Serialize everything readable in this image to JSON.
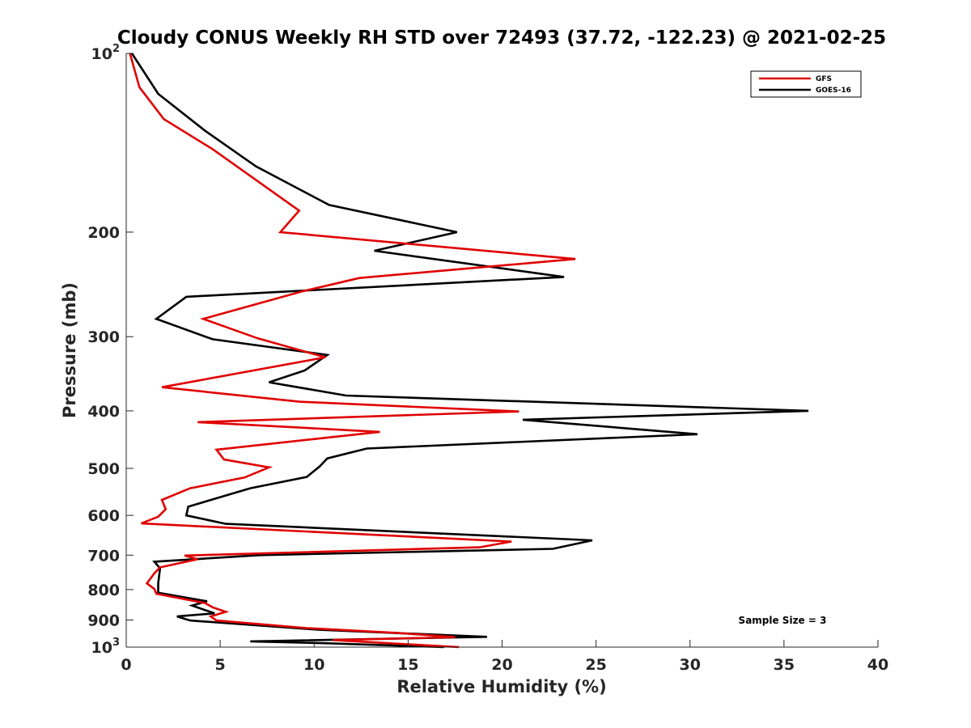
{
  "chart_data": {
    "type": "line",
    "title": "Cloudy CONUS Weekly RH STD over 72493 (37.72, -122.23) @ 2021-02-25",
    "xlabel": "Relative Humidity (%)",
    "ylabel": "Pressure (mb)",
    "xlim": [
      0,
      40
    ],
    "ylim": [
      100,
      1000
    ],
    "y_scale": "log",
    "y_reversed": true,
    "grid": false,
    "legend_position": "top-right",
    "x_ticks": [
      0,
      5,
      10,
      15,
      20,
      25,
      30,
      35,
      40
    ],
    "x_tick_labels": [
      "0",
      "5",
      "10",
      "15",
      "20",
      "25",
      "30",
      "35",
      "40"
    ],
    "y_ticks": [
      100,
      200,
      300,
      400,
      500,
      600,
      700,
      800,
      900,
      1000
    ],
    "y_tick_labels": [
      {
        "base": "10",
        "exp": "2"
      },
      {
        "base": "200",
        "exp": ""
      },
      {
        "base": "300",
        "exp": ""
      },
      {
        "base": "400",
        "exp": ""
      },
      {
        "base": "500",
        "exp": ""
      },
      {
        "base": "600",
        "exp": ""
      },
      {
        "base": "700",
        "exp": ""
      },
      {
        "base": "800",
        "exp": ""
      },
      {
        "base": "900",
        "exp": ""
      },
      {
        "base": "10",
        "exp": "3"
      }
    ],
    "annotation": "Sample Size = 3",
    "series": [
      {
        "name": "GFS",
        "color": "#e00000",
        "points": [
          [
            0.2,
            100
          ],
          [
            0.7,
            114
          ],
          [
            2.0,
            129
          ],
          [
            4.6,
            145
          ],
          [
            9.2,
            184
          ],
          [
            8.2,
            200
          ],
          [
            23.9,
            222
          ],
          [
            12.4,
            239
          ],
          [
            9.3,
            252
          ],
          [
            4.1,
            280
          ],
          [
            7.0,
            302
          ],
          [
            10.6,
            325
          ],
          [
            1.9,
            365
          ],
          [
            9.2,
            386
          ],
          [
            20.9,
            401
          ],
          [
            3.8,
            418
          ],
          [
            13.5,
            434
          ],
          [
            4.8,
            465
          ],
          [
            5.2,
            483
          ],
          [
            7.6,
            498
          ],
          [
            6.3,
            518
          ],
          [
            3.4,
            540
          ],
          [
            1.9,
            565
          ],
          [
            2.1,
            586
          ],
          [
            1.7,
            603
          ],
          [
            0.8,
            619
          ],
          [
            20.5,
            664
          ],
          [
            18.8,
            679
          ],
          [
            3.1,
            701
          ],
          [
            3.8,
            711
          ],
          [
            1.8,
            734
          ],
          [
            1.5,
            751
          ],
          [
            1.1,
            781
          ],
          [
            1.5,
            798
          ],
          [
            1.6,
            813
          ],
          [
            4.2,
            843
          ],
          [
            4.6,
            857
          ],
          [
            5.3,
            872
          ],
          [
            4.5,
            888
          ],
          [
            4.8,
            902
          ],
          [
            9.6,
            929
          ],
          [
            14.5,
            947
          ],
          [
            17.5,
            962
          ],
          [
            11.0,
            973
          ],
          [
            17.7,
            1000
          ]
        ]
      },
      {
        "name": "GOES-16",
        "color": "#000000",
        "points": [
          [
            0.3,
            100
          ],
          [
            1.7,
            117
          ],
          [
            4.2,
            135
          ],
          [
            6.9,
            155
          ],
          [
            10.8,
            180
          ],
          [
            17.6,
            200
          ],
          [
            13.2,
            215
          ],
          [
            23.3,
            238
          ],
          [
            3.2,
            257
          ],
          [
            1.6,
            280
          ],
          [
            4.6,
            303
          ],
          [
            10.7,
            322
          ],
          [
            9.5,
            342
          ],
          [
            7.6,
            358
          ],
          [
            11.7,
            377
          ],
          [
            36.3,
            400
          ],
          [
            21.1,
            414
          ],
          [
            30.4,
            438
          ],
          [
            12.8,
            463
          ],
          [
            10.7,
            481
          ],
          [
            10.3,
            496
          ],
          [
            9.6,
            517
          ],
          [
            6.6,
            540
          ],
          [
            3.3,
            580
          ],
          [
            3.2,
            600
          ],
          [
            5.3,
            620
          ],
          [
            24.8,
            661
          ],
          [
            22.7,
            683
          ],
          [
            7.1,
            700
          ],
          [
            1.5,
            718
          ],
          [
            1.8,
            737
          ],
          [
            1.7,
            781
          ],
          [
            1.7,
            810
          ],
          [
            4.3,
            837
          ],
          [
            3.5,
            851
          ],
          [
            4.7,
            877
          ],
          [
            2.7,
            888
          ],
          [
            3.4,
            902
          ],
          [
            10.3,
            935
          ],
          [
            19.2,
            961
          ],
          [
            6.6,
            978
          ],
          [
            10.6,
            985
          ],
          [
            16.9,
            1000
          ]
        ]
      }
    ]
  }
}
